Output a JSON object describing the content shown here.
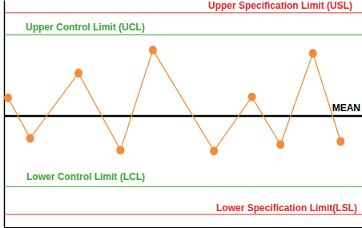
{
  "chart_data": {
    "type": "line",
    "x": [
      0.5,
      3.3,
      9.4,
      14.7,
      18.8,
      26.5,
      31.3,
      34.9,
      39.0,
      42.5
    ],
    "values": [
      2.3,
      -2.8,
      5.4,
      -4.3,
      8.3,
      -4.4,
      2.4,
      -3.6,
      7.9,
      -3.2
    ],
    "color": "#f28c38",
    "marker": "circle",
    "xlim": [
      0,
      45.2
    ],
    "ylim": [
      -14,
      14.6
    ],
    "tick_labels": false,
    "grid": false,
    "reference_lines": [
      {
        "label": "Upper Specification Limit (USL)",
        "value": 13.0,
        "color": "#e02b2b"
      },
      {
        "label": "Upper Control Limit (UCL)",
        "value": 10.2,
        "color": "#3aa53a"
      },
      {
        "label": "MEAN",
        "value": 0,
        "color": "#000000"
      },
      {
        "label": "Lower Control Limit (LCL)",
        "value": -8.9,
        "color": "#3aa53a"
      },
      {
        "label": "Lower Specification Limit(LSL)",
        "value": -12.4,
        "color": "#e02b2b"
      }
    ]
  }
}
